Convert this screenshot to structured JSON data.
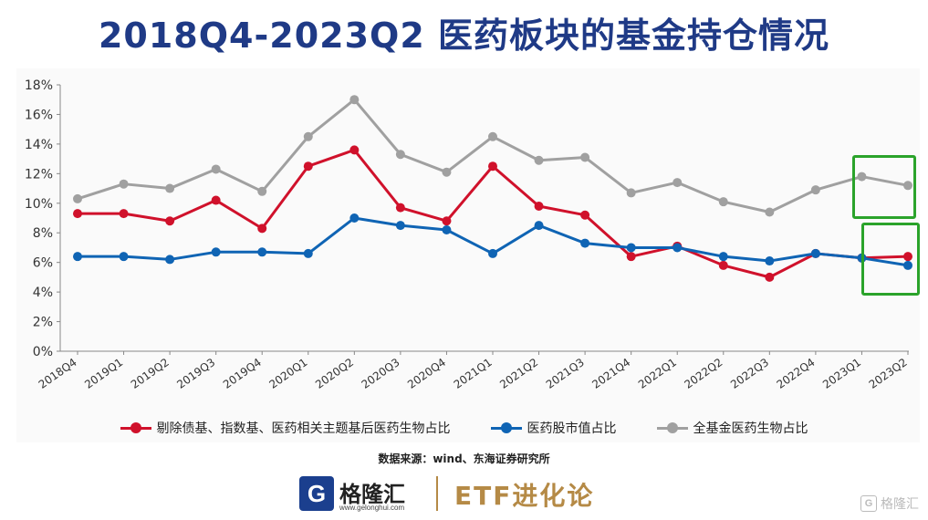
{
  "title": "2018Q4-2023Q2 医药板块的基金持仓情况",
  "chart_data": {
    "type": "line",
    "categories": [
      "2018Q4",
      "2019Q1",
      "2019Q2",
      "2019Q3",
      "2019Q4",
      "2020Q1",
      "2020Q2",
      "2020Q3",
      "2020Q4",
      "2021Q1",
      "2021Q2",
      "2021Q3",
      "2021Q4",
      "2022Q1",
      "2022Q2",
      "2022Q3",
      "2022Q4",
      "2023Q1",
      "2023Q2"
    ],
    "ylim": [
      0,
      18
    ],
    "yticks": [
      0,
      2,
      4,
      6,
      8,
      10,
      12,
      14,
      16,
      18
    ],
    "ytick_labels": [
      "0%",
      "2%",
      "4%",
      "6%",
      "8%",
      "10%",
      "12%",
      "14%",
      "16%",
      "18%"
    ],
    "grid": false,
    "legend_position": "bottom",
    "series": [
      {
        "name": "剔除债基、指数基、医药相关主题基后医药生物占比",
        "color": "#d0112b",
        "values": [
          9.3,
          9.3,
          8.8,
          10.2,
          8.3,
          12.5,
          13.6,
          9.7,
          8.8,
          12.5,
          9.8,
          9.2,
          6.4,
          7.1,
          5.8,
          5.0,
          6.6,
          6.3,
          6.4
        ]
      },
      {
        "name": "医药股市值占比",
        "color": "#0f64b4",
        "values": [
          6.4,
          6.4,
          6.2,
          6.7,
          6.7,
          6.6,
          9.0,
          8.5,
          8.2,
          6.6,
          8.5,
          7.3,
          7.0,
          7.0,
          6.4,
          6.1,
          6.6,
          6.3,
          5.8
        ]
      },
      {
        "name": "全基金医药生物占比",
        "color": "#a0a0a0",
        "values": [
          10.3,
          11.3,
          11.0,
          12.3,
          10.8,
          14.5,
          17.0,
          13.3,
          12.1,
          14.5,
          12.9,
          13.1,
          10.7,
          11.4,
          10.1,
          9.4,
          10.9,
          11.8,
          11.2
        ]
      }
    ]
  },
  "source": "数据来源：wind、东海证券研究所",
  "footer": {
    "logo_letter": "G",
    "logo_name": "格隆汇",
    "logo_url": "www.gelonghui.com",
    "brand": "ETF进化论"
  },
  "watermark": {
    "icon": "G",
    "text": "格隆汇"
  },
  "colors": {
    "title": "#1f3a86",
    "highlight": "#2aa32a",
    "brand_gold": "#b58a46"
  }
}
